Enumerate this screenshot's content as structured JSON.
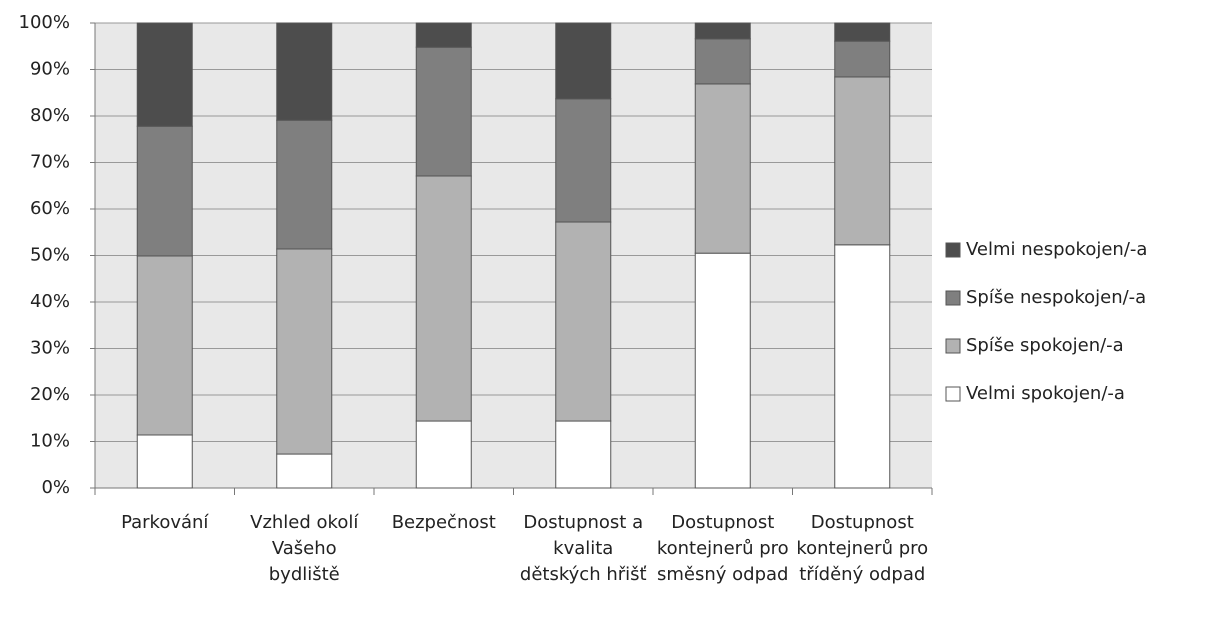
{
  "chart_data": {
    "type": "stacked_bar",
    "categories": [
      "Parkování",
      "Vzhled okolí Vašeho bydliště",
      "Bezpečnost",
      "Dostupnost a kvalita dětských hřišť",
      "Dostupnost kontejnerů pro směsný odpad",
      "Dostupnost kontejnerů pro tříděný odpad"
    ],
    "series": [
      {
        "name": "Velmi spokojen/-a",
        "color": "#ffffff",
        "values": [
          11.4,
          7.3,
          14.4,
          14.4,
          50.5,
          52.3
        ]
      },
      {
        "name": "Spíše spokojen/-a",
        "color": "#b2b2b2",
        "values": [
          38.5,
          44.1,
          52.7,
          42.8,
          36.4,
          36.1
        ]
      },
      {
        "name": "Spíše nespokojen/-a",
        "color": "#7f7f7f",
        "values": [
          27.9,
          27.7,
          27.7,
          26.5,
          9.7,
          7.7
        ]
      },
      {
        "name": "Velmi nespokojen/-a",
        "color": "#4d4d4d",
        "values": [
          22.2,
          20.9,
          5.2,
          16.3,
          3.4,
          3.9
        ]
      }
    ],
    "ylim": [
      0,
      100
    ],
    "yticks": [
      {
        "value": 0,
        "label": "0%"
      },
      {
        "value": 10,
        "label": "10%"
      },
      {
        "value": 20,
        "label": "20%"
      },
      {
        "value": 30,
        "label": "30%"
      },
      {
        "value": 40,
        "label": "40%"
      },
      {
        "value": 50,
        "label": "50%"
      },
      {
        "value": 60,
        "label": "60%"
      },
      {
        "value": 70,
        "label": "70%"
      },
      {
        "value": 80,
        "label": "80%"
      },
      {
        "value": 90,
        "label": "90%"
      },
      {
        "value": 100,
        "label": "100%"
      }
    ],
    "grid": true,
    "legend": "right"
  }
}
